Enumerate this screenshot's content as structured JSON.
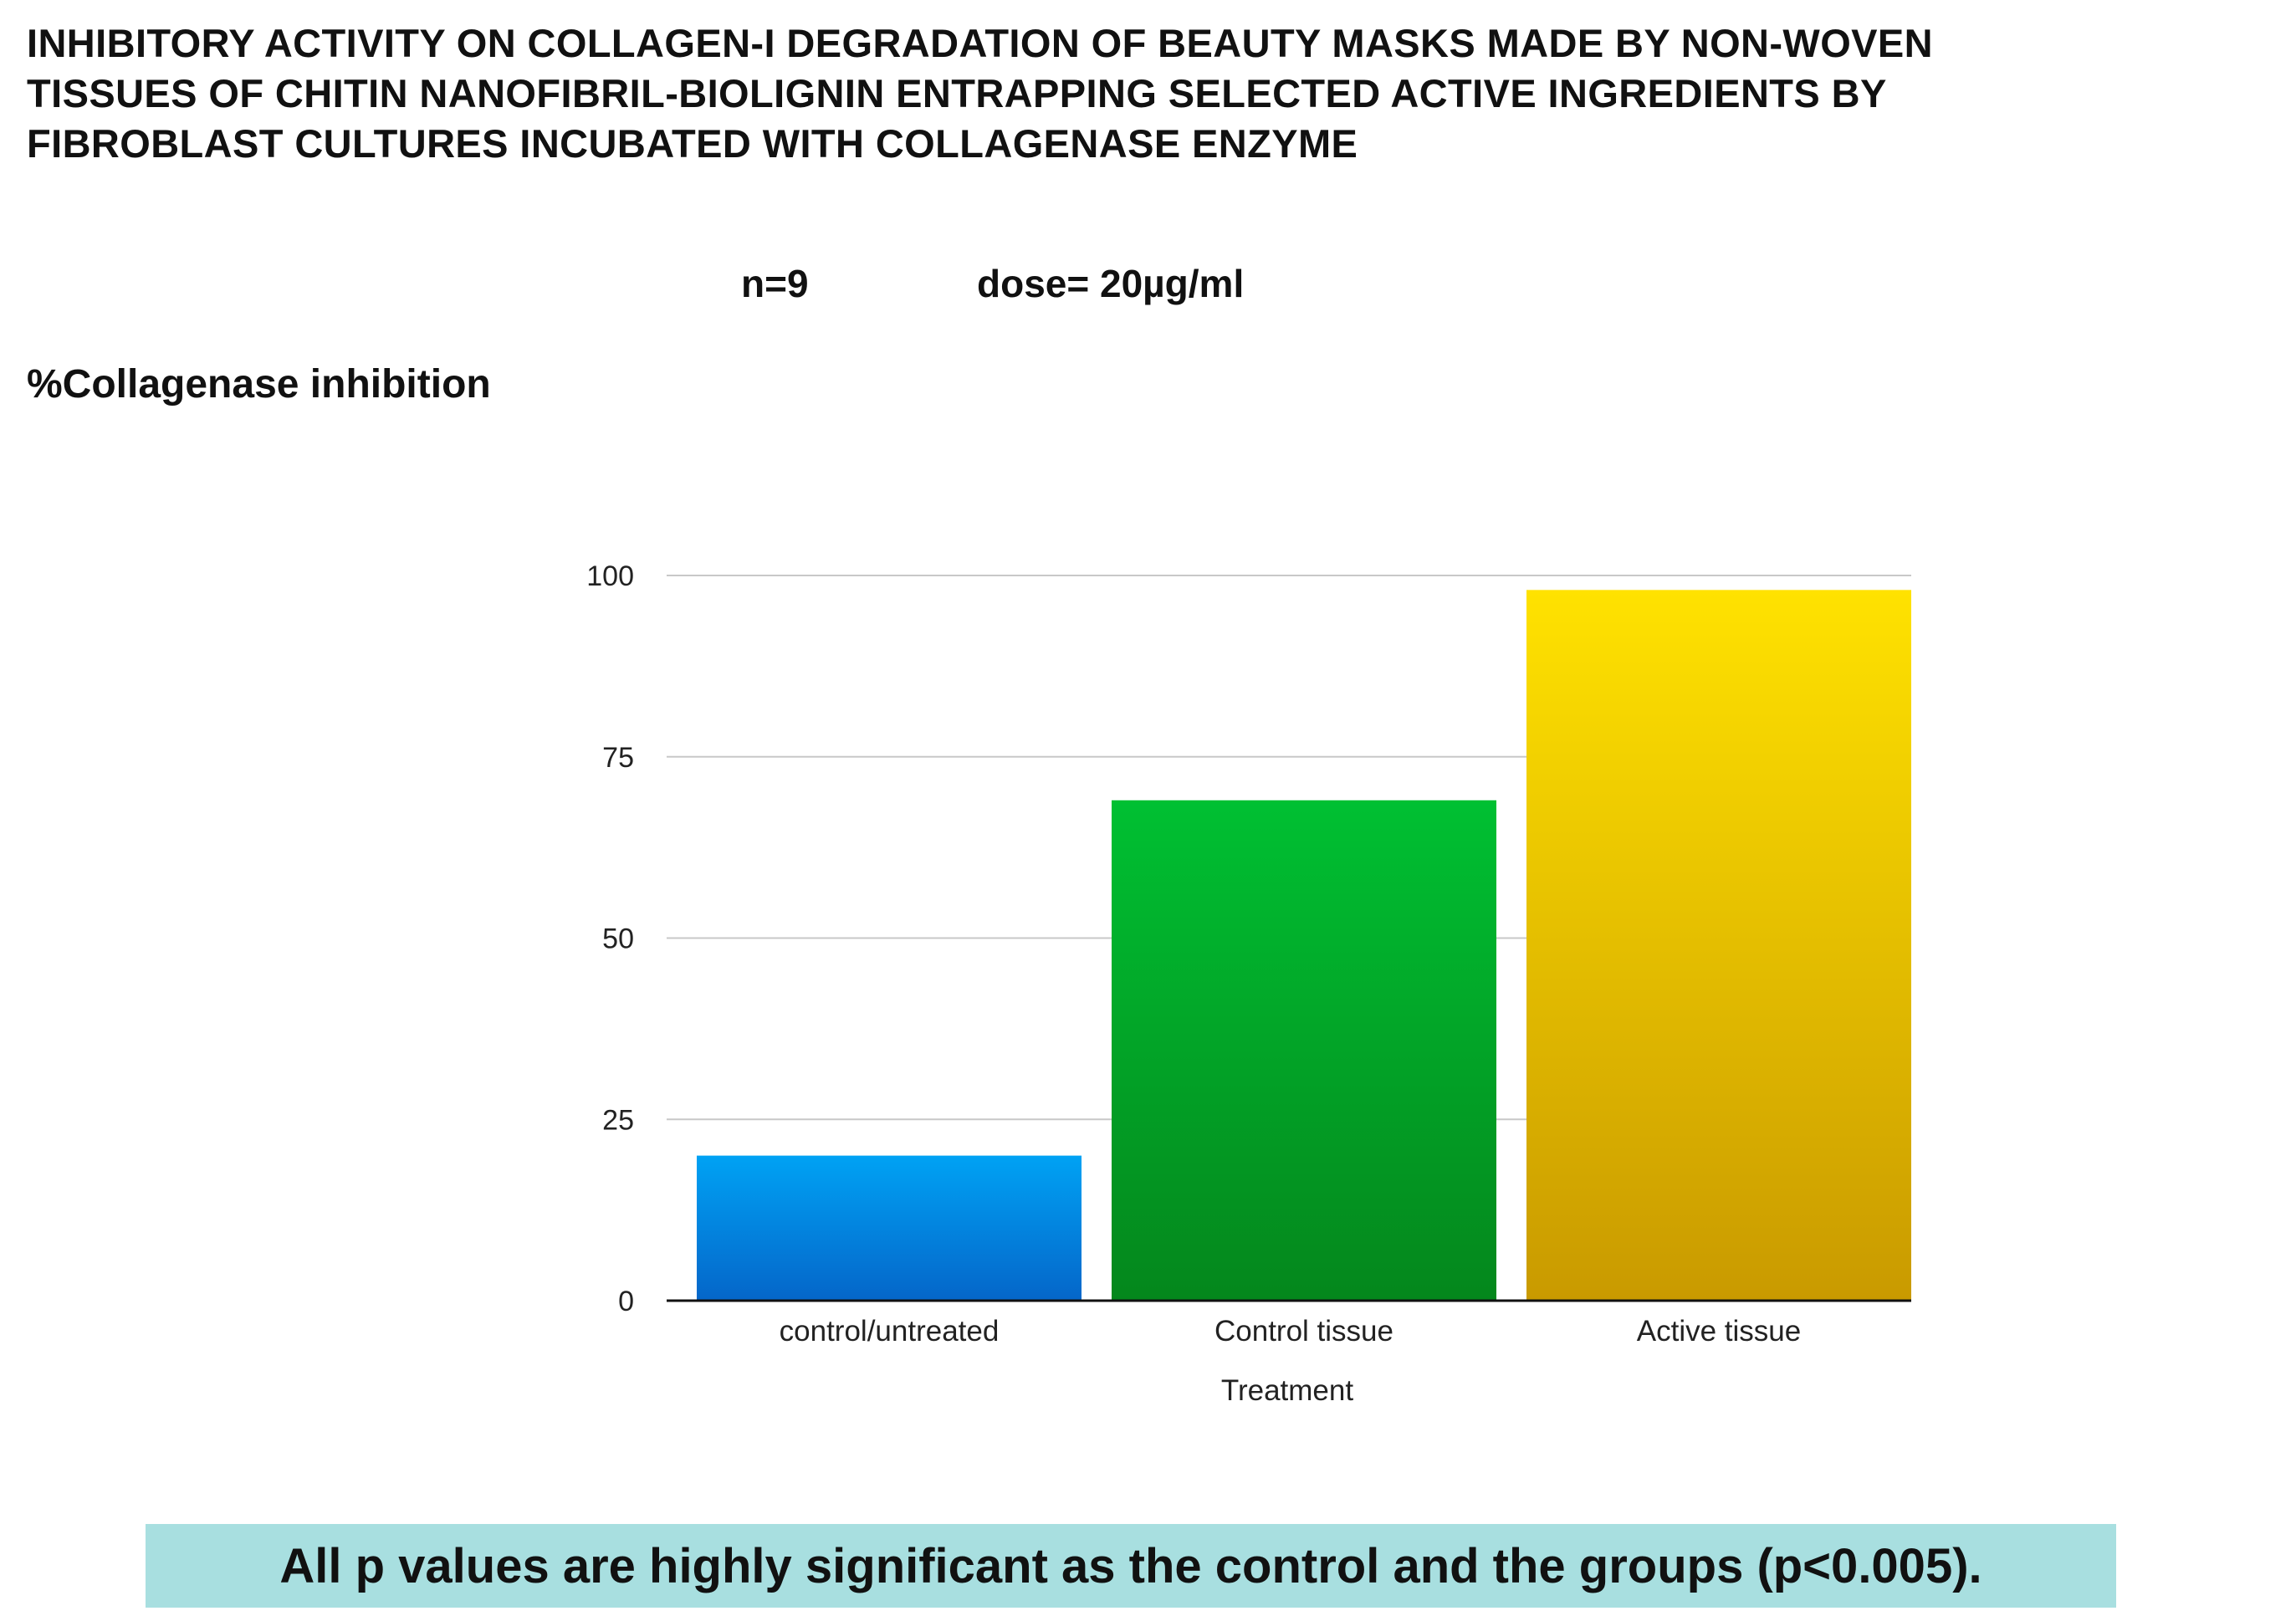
{
  "title_lines": [
    "INHIBITORY ACTIVITY  ON COLLAGEN-I  DEGRADATION OF BEAUTY MASKS MADE BY NON-WOVEN",
    "TISSUES OF CHITIN NANOFIBRIL-BIOLIGNIN ENTRAPPING SELECTED ACTIVE INGREDIENTS BY",
    "FIBROBLAST CULTURES INCUBATED WITH COLLAGENASE ENZYME"
  ],
  "meta": {
    "n": "n=9",
    "dose": "dose=  20µg/ml"
  },
  "footnote": "All p values are highly significant as the control and the groups (p<0.005).",
  "chart_data": {
    "type": "bar",
    "ylabel": "%Collagenase inhibition",
    "xlabel": "Treatment",
    "categories": [
      "control/untreated",
      "Control tissue",
      "Active tissue"
    ],
    "values": [
      20,
      69,
      98
    ],
    "ylim": [
      0,
      100
    ],
    "yticks": [
      0,
      25,
      50,
      75,
      100
    ],
    "grid": true,
    "legend": "none",
    "colors": [
      {
        "top": "#00a2f4",
        "bottom": "#0566c9"
      },
      {
        "top": "#00c032",
        "bottom": "#04871c"
      },
      {
        "top": "#ffe200",
        "bottom": "#c99a00"
      }
    ]
  }
}
